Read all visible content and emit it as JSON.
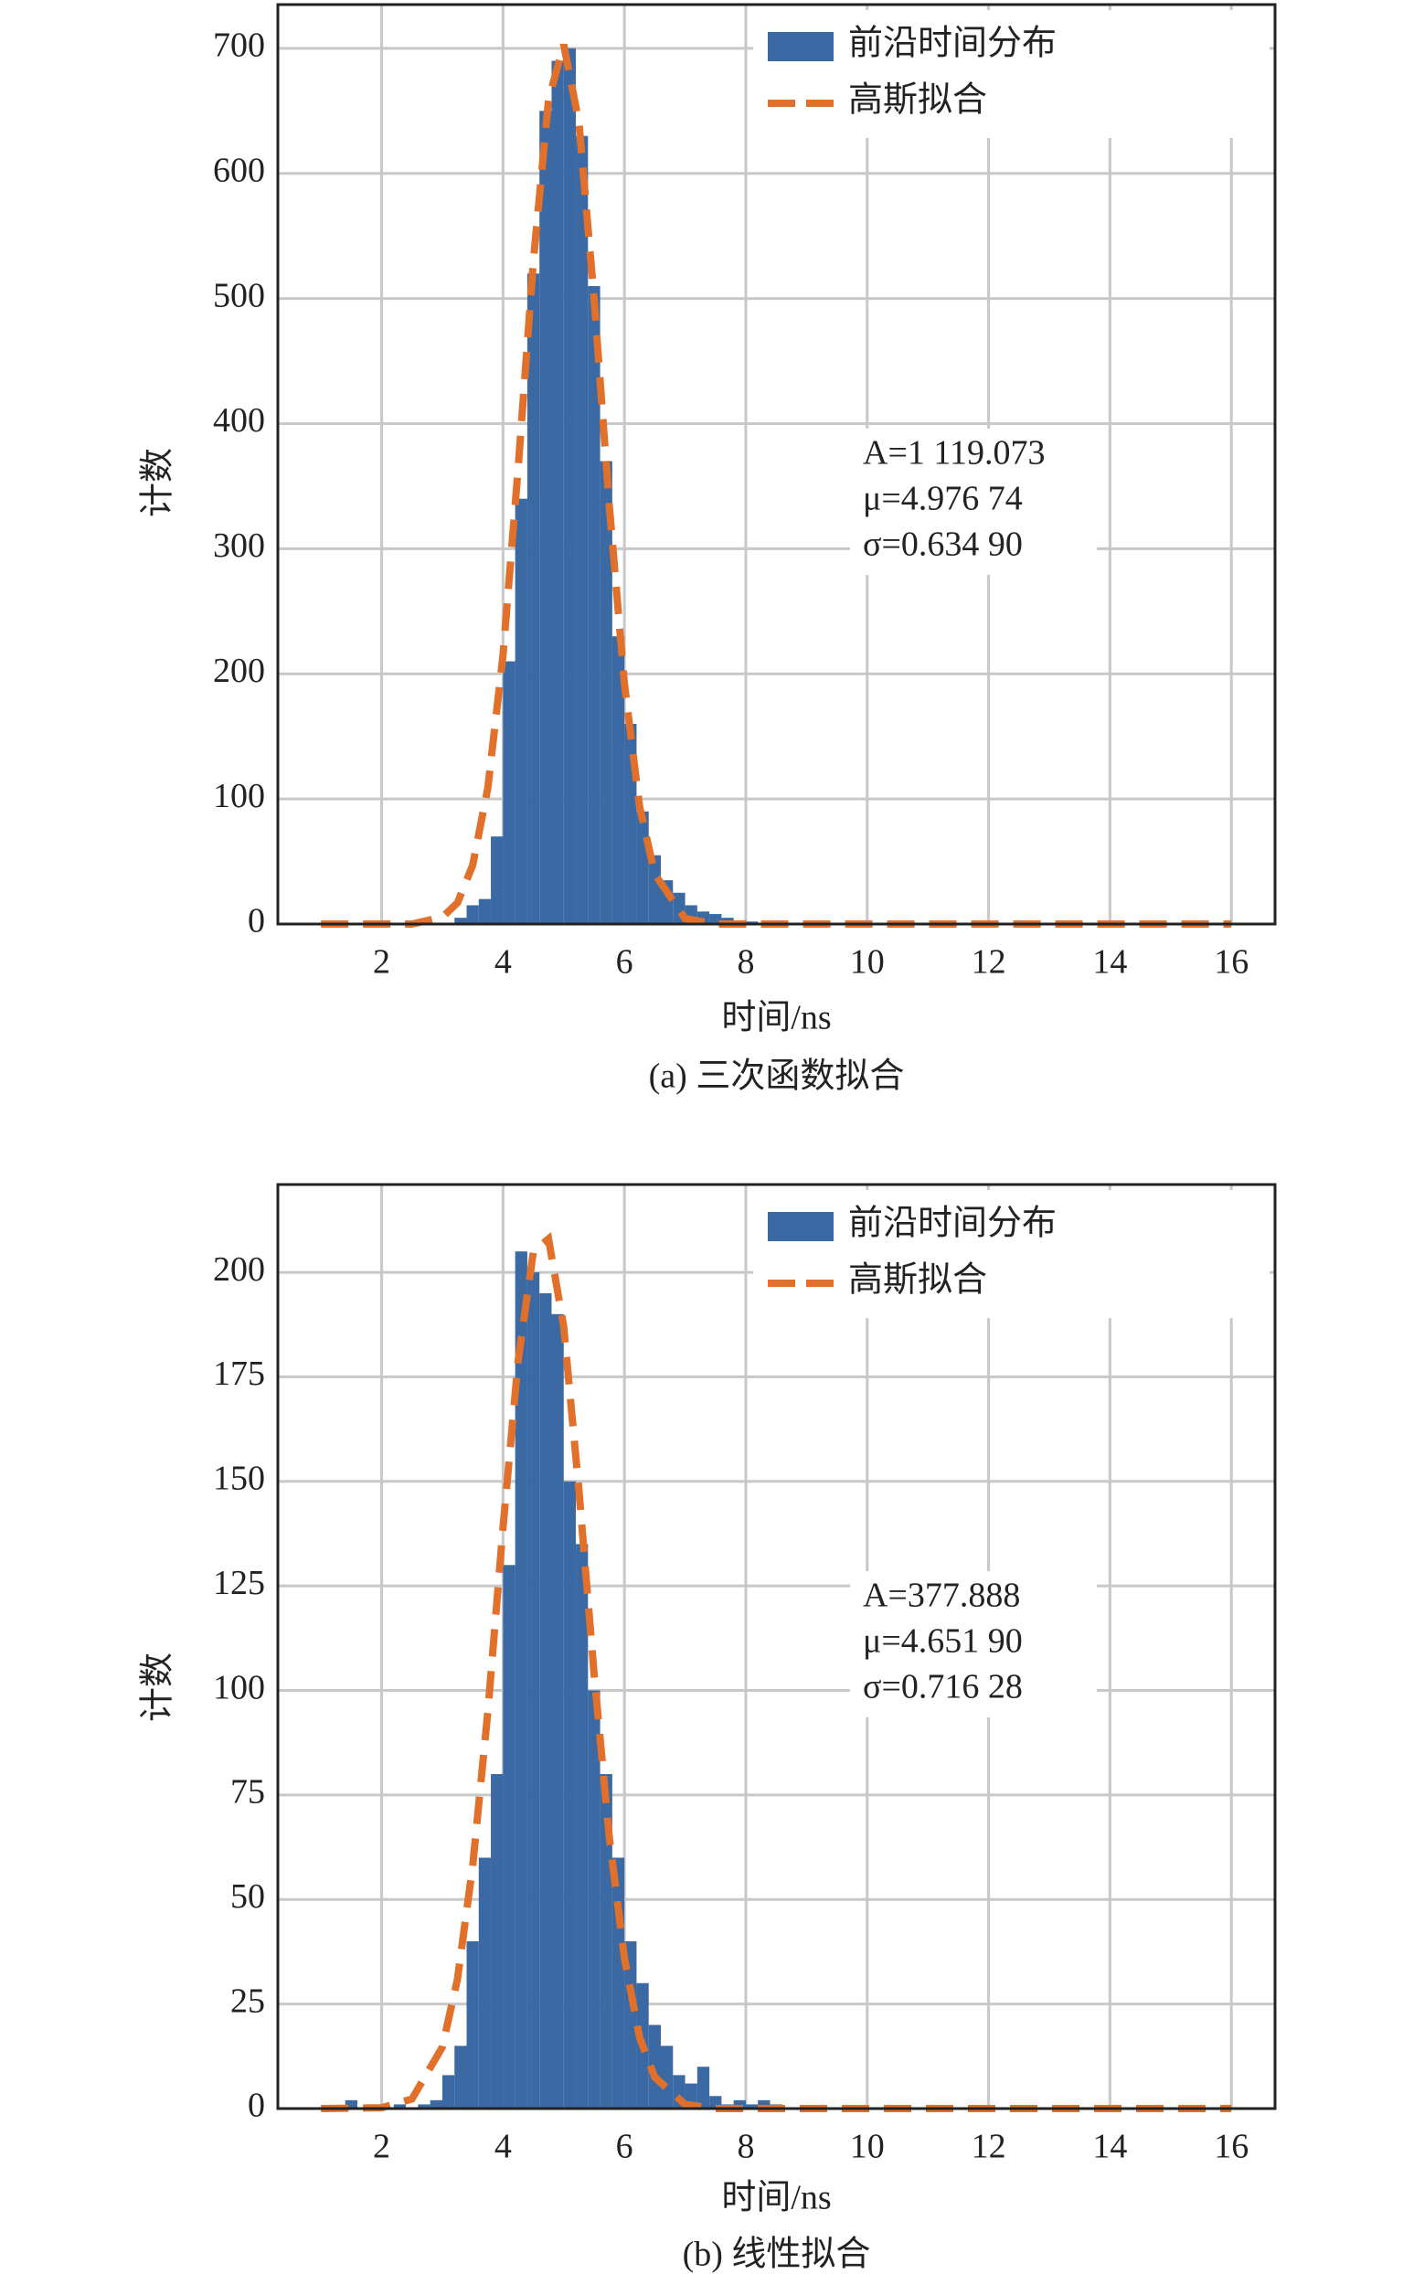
{
  "chart_data": [
    {
      "type": "histogram",
      "x_label": "时间/ns",
      "y_label": "计数",
      "caption": "(a) 三次函数拟合",
      "xlim": [
        0.29,
        16.72
      ],
      "ylim": [
        0,
        735
      ],
      "xticks": [
        2,
        4,
        6,
        8,
        10,
        12,
        14,
        16
      ],
      "yticks": [
        0,
        100,
        200,
        300,
        400,
        500,
        600,
        700
      ],
      "grid": true,
      "legend": "upper right",
      "annotations": [
        "A=1 119.073",
        "μ=4.976 74",
        "σ=0.634 90"
      ],
      "series": [
        {
          "name": "前沿时间分布",
          "type": "histogram",
          "color": "#3a69a3",
          "bins": [
            3.2,
            3.4,
            3.6,
            3.8,
            4.0,
            4.2,
            4.4,
            4.6,
            4.8,
            5.0,
            5.2,
            5.4,
            5.6,
            5.8,
            6.0,
            6.2,
            6.4,
            6.6,
            6.8,
            7.0,
            7.2,
            7.4,
            7.6,
            7.8,
            8.0,
            8.2,
            8.4
          ],
          "values": [
            5,
            15,
            20,
            70,
            210,
            340,
            520,
            650,
            690,
            700,
            630,
            510,
            370,
            230,
            160,
            90,
            55,
            35,
            25,
            15,
            10,
            8,
            5,
            3,
            2,
            1
          ]
        },
        {
          "name": "高斯拟合",
          "type": "line",
          "color": "#e0702a",
          "x": [
            1,
            2,
            2.5,
            3,
            3.25,
            3.5,
            3.75,
            4,
            4.25,
            4.5,
            4.75,
            5,
            5.25,
            5.5,
            5.75,
            6,
            6.25,
            6.5,
            7,
            7.5,
            8,
            9,
            10,
            12,
            14,
            16
          ],
          "values": [
            0,
            0,
            0,
            5.5,
            17,
            47,
            109,
            215,
            365,
            530,
            659,
            703,
            641,
            500,
            335,
            192,
            94,
            40,
            4.4,
            0,
            0,
            0,
            0,
            0,
            0,
            0
          ]
        }
      ]
    },
    {
      "type": "histogram",
      "x_label": "时间/ns",
      "y_label": "计数",
      "caption": "(b) 线性拟合",
      "xlim": [
        0.29,
        16.72
      ],
      "ylim": [
        0,
        221
      ],
      "xticks": [
        2,
        4,
        6,
        8,
        10,
        12,
        14,
        16
      ],
      "yticks": [
        0,
        25,
        50,
        75,
        100,
        125,
        150,
        175,
        200
      ],
      "grid": true,
      "legend": "upper right",
      "annotations": [
        "A=377.888",
        "μ=4.651 90",
        "σ=0.716 28"
      ],
      "series": [
        {
          "name": "前沿时间分布",
          "type": "histogram",
          "color": "#3a69a3",
          "bins": [
            1.4,
            1.6,
            1.8,
            2.0,
            2.2,
            2.4,
            2.6,
            2.8,
            3.0,
            3.2,
            3.4,
            3.6,
            3.8,
            4.0,
            4.2,
            4.4,
            4.6,
            4.8,
            5.0,
            5.2,
            5.4,
            5.6,
            5.8,
            6.0,
            6.2,
            6.4,
            6.6,
            6.8,
            7.0,
            7.2,
            7.4,
            7.6,
            7.8,
            8.0,
            8.2,
            8.4,
            8.6
          ],
          "values": [
            2,
            0,
            0,
            0,
            1,
            0,
            1,
            2,
            8,
            15,
            40,
            60,
            80,
            130,
            205,
            200,
            195,
            190,
            150,
            135,
            100,
            80,
            60,
            40,
            30,
            20,
            15,
            8,
            6,
            10,
            3,
            1,
            2,
            1,
            2,
            1
          ]
        },
        {
          "name": "高斯拟合",
          "type": "line",
          "color": "#e0702a",
          "x": [
            1,
            2,
            2.5,
            3,
            3.25,
            3.5,
            3.75,
            4,
            4.25,
            4.5,
            4.75,
            5,
            5.25,
            5.5,
            5.75,
            6,
            6.25,
            6.5,
            7,
            7.5,
            8,
            9,
            10,
            12,
            14,
            16
          ],
          "values": [
            0,
            0.2,
            2.3,
            14.7,
            31,
            58,
            95,
            139,
            179,
            205,
            208,
            187,
            148,
            104,
            65,
            36,
            17,
            7.5,
            1,
            0,
            0,
            0,
            0,
            0,
            0,
            0
          ]
        }
      ]
    }
  ]
}
